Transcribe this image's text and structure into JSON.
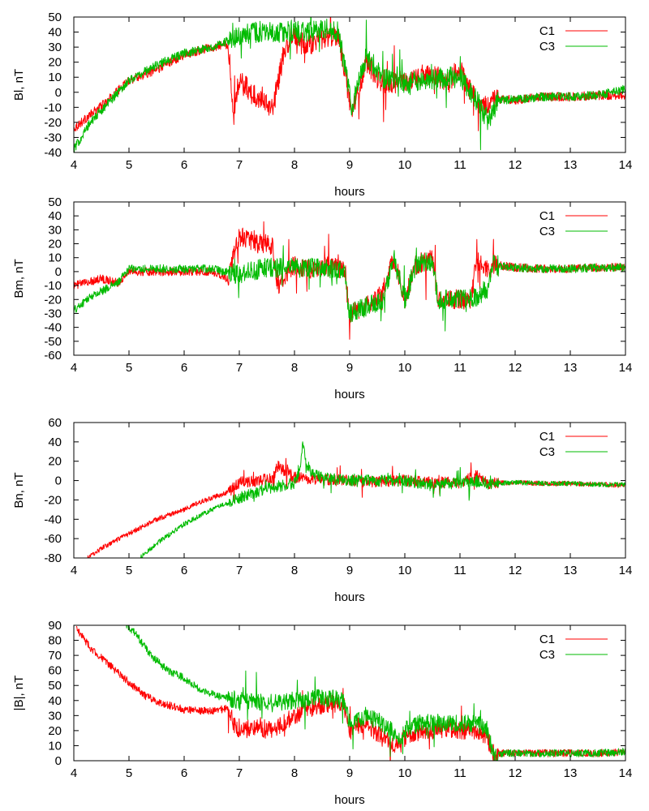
{
  "chart_data": [
    {
      "type": "line",
      "xlabel": "hours",
      "ylabel": "Bl, nT",
      "xlim": [
        4,
        14
      ],
      "ylim": [
        -40,
        50
      ],
      "xticks": [
        4,
        5,
        6,
        7,
        8,
        9,
        10,
        11,
        12,
        13,
        14
      ],
      "yticks": [
        -40,
        -30,
        -20,
        -10,
        0,
        10,
        20,
        30,
        40,
        50
      ],
      "legend_position": "top-right",
      "grid": false,
      "series": [
        {
          "name": "C1",
          "color": "#ff0000",
          "x": [
            4.0,
            4.3,
            4.6,
            5.0,
            5.5,
            6.0,
            6.5,
            6.8,
            6.9,
            7.0,
            7.2,
            7.4,
            7.6,
            7.8,
            8.0,
            8.2,
            8.4,
            8.6,
            8.8,
            8.95,
            9.05,
            9.3,
            9.6,
            10.0,
            10.4,
            10.8,
            11.0,
            11.2,
            11.4,
            11.6,
            12.0,
            12.5,
            13.0,
            13.5,
            14.0
          ],
          "y": [
            -24,
            -15,
            -6,
            8,
            15,
            25,
            30,
            32,
            -15,
            10,
            0,
            -5,
            -12,
            25,
            38,
            30,
            35,
            36,
            38,
            5,
            -15,
            20,
            5,
            8,
            12,
            8,
            15,
            0,
            -10,
            -5,
            -5,
            -3,
            -3,
            -2,
            -2
          ],
          "noise": 3
        },
        {
          "name": "C3",
          "color": "#00bb00",
          "x": [
            4.0,
            4.3,
            4.6,
            5.0,
            5.5,
            6.0,
            6.5,
            6.8,
            7.0,
            7.3,
            7.6,
            8.0,
            8.3,
            8.6,
            8.8,
            8.95,
            9.05,
            9.3,
            9.6,
            10.0,
            10.4,
            10.8,
            11.0,
            11.3,
            11.5,
            11.7,
            12.0,
            12.5,
            13.0,
            13.5,
            14.0
          ],
          "y": [
            -38,
            -20,
            -8,
            8,
            18,
            26,
            30,
            34,
            38,
            40,
            40,
            41,
            40,
            42,
            40,
            10,
            -10,
            25,
            10,
            6,
            8,
            10,
            10,
            -5,
            -18,
            -5,
            -5,
            -3,
            -3,
            -2,
            2
          ],
          "noise": 3
        }
      ]
    },
    {
      "type": "line",
      "xlabel": "hours",
      "ylabel": "Bm, nT",
      "xlim": [
        4,
        14
      ],
      "ylim": [
        -60,
        50
      ],
      "xticks": [
        4,
        5,
        6,
        7,
        8,
        9,
        10,
        11,
        12,
        13,
        14
      ],
      "yticks": [
        -60,
        -50,
        -40,
        -30,
        -20,
        -10,
        0,
        10,
        20,
        30,
        40,
        50
      ],
      "legend_position": "top-right",
      "grid": false,
      "series": [
        {
          "name": "C1",
          "color": "#ff0000",
          "x": [
            4.0,
            4.5,
            4.8,
            5.0,
            5.5,
            6.0,
            6.5,
            6.8,
            6.95,
            7.0,
            7.3,
            7.6,
            7.7,
            8.0,
            8.3,
            8.6,
            8.9,
            9.0,
            9.3,
            9.6,
            9.8,
            10.0,
            10.2,
            10.5,
            10.6,
            11.0,
            11.2,
            11.3,
            11.5,
            11.6,
            12.0,
            12.5,
            13.0,
            13.5,
            14.0
          ],
          "y": [
            -10,
            -5,
            -8,
            0,
            0,
            0,
            0,
            -5,
            20,
            25,
            22,
            18,
            -10,
            5,
            2,
            5,
            0,
            -30,
            -25,
            -15,
            10,
            -20,
            5,
            10,
            -20,
            -20,
            -20,
            10,
            0,
            5,
            3,
            2,
            2,
            3,
            3
          ],
          "noise": 3
        },
        {
          "name": "C3",
          "color": "#00bb00",
          "x": [
            4.0,
            4.3,
            4.6,
            4.8,
            5.0,
            5.5,
            6.0,
            6.5,
            7.0,
            7.5,
            8.0,
            8.3,
            8.6,
            8.9,
            9.0,
            9.3,
            9.6,
            9.8,
            10.0,
            10.2,
            10.5,
            10.6,
            11.0,
            11.3,
            11.5,
            11.6,
            12.0,
            12.5,
            13.0,
            13.5,
            14.0
          ],
          "y": [
            -28,
            -18,
            -12,
            -8,
            2,
            2,
            2,
            2,
            -2,
            3,
            3,
            3,
            3,
            0,
            -30,
            -25,
            -20,
            10,
            -20,
            5,
            8,
            -20,
            -20,
            -18,
            -12,
            5,
            3,
            2,
            2,
            3,
            3
          ],
          "noise": 3
        }
      ]
    },
    {
      "type": "line",
      "xlabel": "hours",
      "ylabel": "Bn, nT",
      "xlim": [
        4,
        14
      ],
      "ylim": [
        -80,
        60
      ],
      "xticks": [
        4,
        5,
        6,
        7,
        8,
        9,
        10,
        11,
        12,
        13,
        14
      ],
      "yticks": [
        -80,
        -60,
        -40,
        -20,
        0,
        20,
        40,
        60
      ],
      "legend_position": "top-right",
      "grid": false,
      "series": [
        {
          "name": "C1",
          "color": "#ff0000",
          "x": [
            4.25,
            4.5,
            5.0,
            5.5,
            6.0,
            6.3,
            6.6,
            6.8,
            7.0,
            7.3,
            7.6,
            7.7,
            8.0,
            8.5,
            9.0,
            9.5,
            10.0,
            10.5,
            11.0,
            11.3,
            11.5,
            12.0,
            12.5,
            13.0,
            13.5,
            14.0
          ],
          "y": [
            -80,
            -70,
            -55,
            -40,
            -30,
            -22,
            -16,
            -12,
            -2,
            0,
            2,
            15,
            3,
            1,
            0,
            -1,
            0,
            -2,
            -2,
            5,
            -3,
            -2,
            -3,
            -3,
            -4,
            -5
          ],
          "noise": 2.5
        },
        {
          "name": "C3",
          "color": "#00bb00",
          "x": [
            5.2,
            5.5,
            6.0,
            6.5,
            7.0,
            7.5,
            8.0,
            8.1,
            8.15,
            8.2,
            8.3,
            8.5,
            9.0,
            9.5,
            10.0,
            10.5,
            11.0,
            11.3,
            11.5,
            12.0,
            12.5,
            13.0,
            13.5,
            14.0
          ],
          "y": [
            -80,
            -65,
            -45,
            -30,
            -18,
            -8,
            -3,
            10,
            38,
            20,
            8,
            3,
            0,
            0,
            0,
            -5,
            -2,
            0,
            -3,
            -2,
            -3,
            -3,
            -4,
            -4
          ],
          "noise": 2.5
        }
      ]
    },
    {
      "type": "line",
      "xlabel": "hours",
      "ylabel": "|B|, nT",
      "xlim": [
        4,
        14
      ],
      "ylim": [
        0,
        90
      ],
      "xticks": [
        4,
        5,
        6,
        7,
        8,
        9,
        10,
        11,
        12,
        13,
        14
      ],
      "yticks": [
        0,
        10,
        20,
        30,
        40,
        50,
        60,
        70,
        80,
        90
      ],
      "legend_position": "top-right",
      "grid": false,
      "series": [
        {
          "name": "C1",
          "color": "#ff0000",
          "x": [
            4.05,
            4.3,
            4.6,
            5.0,
            5.3,
            5.6,
            6.0,
            6.5,
            6.8,
            6.9,
            7.0,
            7.3,
            7.6,
            8.0,
            8.3,
            8.6,
            8.9,
            9.0,
            9.3,
            9.6,
            9.9,
            10.0,
            10.3,
            10.6,
            11.0,
            11.3,
            11.5,
            11.6,
            12.0,
            12.5,
            13.0,
            13.5,
            14.0
          ],
          "y": [
            88,
            75,
            65,
            52,
            43,
            38,
            34,
            33,
            35,
            25,
            20,
            22,
            20,
            30,
            35,
            38,
            37,
            20,
            25,
            15,
            10,
            15,
            20,
            20,
            20,
            20,
            15,
            5,
            5,
            5,
            5,
            5,
            6
          ],
          "noise": 2.5
        },
        {
          "name": "C3",
          "color": "#00bb00",
          "x": [
            4.95,
            5.1,
            5.4,
            5.7,
            6.0,
            6.3,
            6.6,
            7.0,
            7.5,
            8.0,
            8.5,
            8.9,
            9.0,
            9.3,
            9.6,
            9.9,
            10.0,
            10.3,
            10.6,
            11.0,
            11.3,
            11.5,
            11.6,
            12.0,
            12.5,
            13.0,
            13.5,
            14.0
          ],
          "y": [
            90,
            85,
            70,
            60,
            55,
            47,
            43,
            40,
            38,
            40,
            42,
            40,
            25,
            30,
            25,
            15,
            20,
            25,
            25,
            25,
            25,
            20,
            5,
            5,
            5,
            5,
            5,
            6
          ],
          "noise": 2.5
        }
      ]
    }
  ]
}
